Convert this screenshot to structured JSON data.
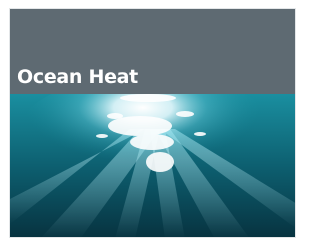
{
  "title": "Ocean Heat"
}
